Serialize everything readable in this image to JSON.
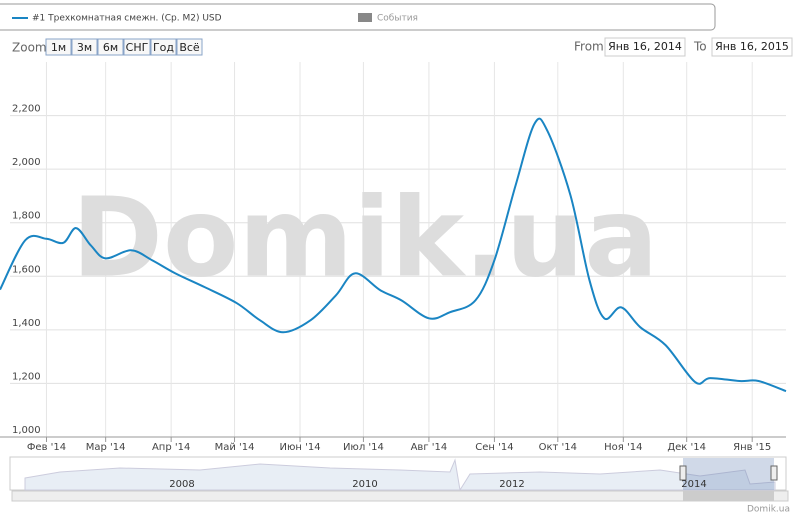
{
  "chart_data": {
    "type": "line",
    "series": [
      {
        "name": "#1 Трехкомнатная смежн. (Ср. М2) USD",
        "color": "#1a85c3",
        "x": [
          "2014-01-10",
          "2014-01-22",
          "2014-02-01",
          "2014-02-09",
          "2014-02-15",
          "2014-02-22",
          "2014-03-01",
          "2014-03-13",
          "2014-03-23",
          "2014-04-03",
          "2014-04-17",
          "2014-05-02",
          "2014-05-13",
          "2014-05-24",
          "2014-06-06",
          "2014-06-18",
          "2014-06-27",
          "2014-07-09",
          "2014-07-19",
          "2014-08-01",
          "2014-08-11",
          "2014-08-23",
          "2014-09-01",
          "2014-09-11",
          "2014-09-20",
          "2014-09-26",
          "2014-10-07",
          "2014-10-16",
          "2014-10-23",
          "2014-10-31",
          "2014-11-09",
          "2014-11-21",
          "2014-12-05",
          "2014-12-12",
          "2014-12-26",
          "2015-01-04",
          "2015-01-17"
        ],
        "values": [
          1550,
          1735,
          1740,
          1725,
          1780,
          1715,
          1667,
          1697,
          1660,
          1611,
          1559,
          1500,
          1436,
          1391,
          1436,
          1529,
          1611,
          1548,
          1510,
          1443,
          1466,
          1510,
          1660,
          1939,
          2170,
          2144,
          1902,
          1585,
          1443,
          1484,
          1410,
          1343,
          1205,
          1220,
          1209,
          1209,
          1171
        ]
      }
    ],
    "events_label": "События",
    "xlim": [
      "2014-01-10",
      "2015-01-17"
    ],
    "xticks": [
      {
        "value": "2014-02-01",
        "label": "Фев '14"
      },
      {
        "value": "2014-03-01",
        "label": "Мар '14"
      },
      {
        "value": "2014-04-01",
        "label": "Апр '14"
      },
      {
        "value": "2014-05-01",
        "label": "Май '14"
      },
      {
        "value": "2014-06-01",
        "label": "Июн '14"
      },
      {
        "value": "2014-07-01",
        "label": "Июл '14"
      },
      {
        "value": "2014-08-01",
        "label": "Авг '14"
      },
      {
        "value": "2014-09-01",
        "label": "Сен '14"
      },
      {
        "value": "2014-10-01",
        "label": "Окт '14"
      },
      {
        "value": "2014-11-01",
        "label": "Ноя '14"
      },
      {
        "value": "2014-12-01",
        "label": "Дек '14"
      },
      {
        "value": "2015-01-01",
        "label": "Янв '15"
      }
    ],
    "ylim": [
      1000,
      2400
    ],
    "yticks": [
      {
        "value": 1000,
        "label": "1,000"
      },
      {
        "value": 1200,
        "label": "1,200"
      },
      {
        "value": 1400,
        "label": "1,400"
      },
      {
        "value": 1600,
        "label": "1,600"
      },
      {
        "value": 1800,
        "label": "1,800"
      },
      {
        "value": 2000,
        "label": "2,000"
      },
      {
        "value": 2200,
        "label": "2,200"
      }
    ],
    "grid": true
  },
  "range_selector": {
    "zoom_label": "Zoom",
    "buttons": [
      "1м",
      "3м",
      "6м",
      "СНГ",
      "Год",
      "Всё"
    ],
    "from_label": "From",
    "from": "Янв 16, 2014",
    "to_label": "To",
    "to": "Янв 16, 2015"
  },
  "navigator": {
    "labels": [
      "2008",
      "2010",
      "2012",
      "2014"
    ]
  },
  "watermark": "Domik.ua",
  "credits": "Domik.ua"
}
